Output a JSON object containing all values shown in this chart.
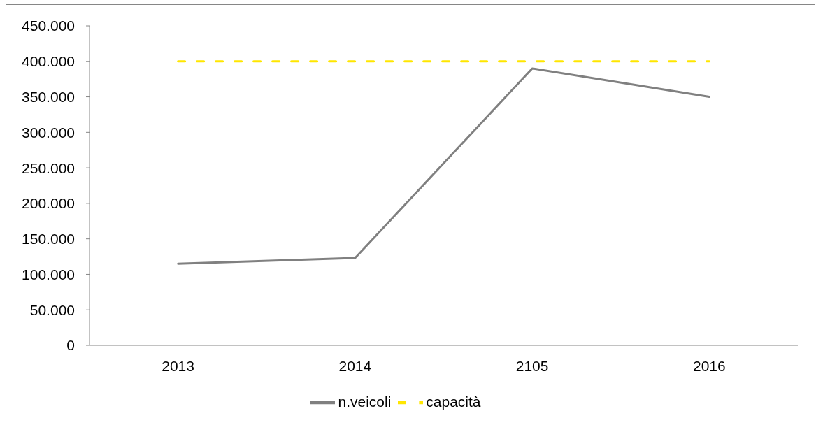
{
  "chart_data": {
    "type": "line",
    "categories": [
      "2013",
      "2014",
      "2105",
      "2016"
    ],
    "series": [
      {
        "name": "n.veicoli",
        "color": "#808080",
        "values": [
          115000,
          123000,
          390000,
          350000
        ]
      },
      {
        "name": "capacità",
        "color": "#ffe600",
        "values": [
          400000,
          400000,
          400000,
          400000
        ],
        "line_style": "dashed"
      }
    ],
    "ylim": [
      0,
      450000
    ],
    "yticks": [
      0,
      {
        "value": 50000,
        "label": "50.000"
      },
      {
        "value": 100000,
        "label": "100.000"
      },
      {
        "value": 150000,
        "label": "150.000"
      },
      {
        "value": 200000,
        "label": "200.000"
      },
      {
        "value": 250000,
        "label": "250.000"
      },
      {
        "value": 300000,
        "label": "300.000"
      },
      {
        "value": 350000,
        "label": "350.000"
      },
      {
        "value": 400000,
        "label": "400.000"
      },
      {
        "value": 450000,
        "label": "450.000"
      }
    ],
    "legend": "bottom",
    "marker": "none",
    "line_style": "solid"
  }
}
